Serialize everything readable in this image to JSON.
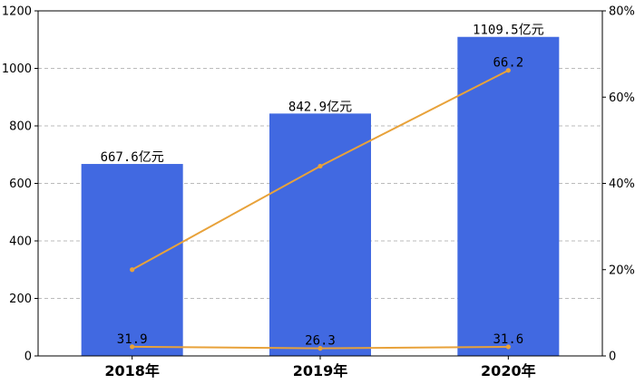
{
  "chart_data": {
    "type": "bar+line",
    "categories": [
      "2018年",
      "2019年",
      "2020年"
    ],
    "bar_series": {
      "values": [
        667.6,
        842.9,
        1109.5
      ],
      "labels": [
        "667.6亿元",
        "842.9亿元",
        "1109.5亿元"
      ],
      "color": "#4169E1",
      "axis": "left"
    },
    "line_series": [
      {
        "values": [
          31.9,
          26.3,
          31.6
        ],
        "labels": [
          "31.9",
          "26.3",
          "31.6"
        ],
        "color": "#E8A23A",
        "axis": "left"
      },
      {
        "values": [
          20,
          44,
          66.2
        ],
        "labels": [
          "",
          "",
          "66.2"
        ],
        "color": "#E8A23A",
        "axis": "right"
      }
    ],
    "y_left": {
      "min": 0,
      "max": 1200,
      "ticks": [
        0,
        200,
        400,
        600,
        800,
        1000,
        1200
      ]
    },
    "y_right": {
      "min": 0,
      "max": 80,
      "ticks": [
        0,
        20,
        40,
        60,
        80
      ],
      "tick_labels": [
        "0",
        "20%",
        "40%",
        "60%",
        "80%"
      ]
    },
    "grid": "horizontal-dashed",
    "legend": "none"
  }
}
